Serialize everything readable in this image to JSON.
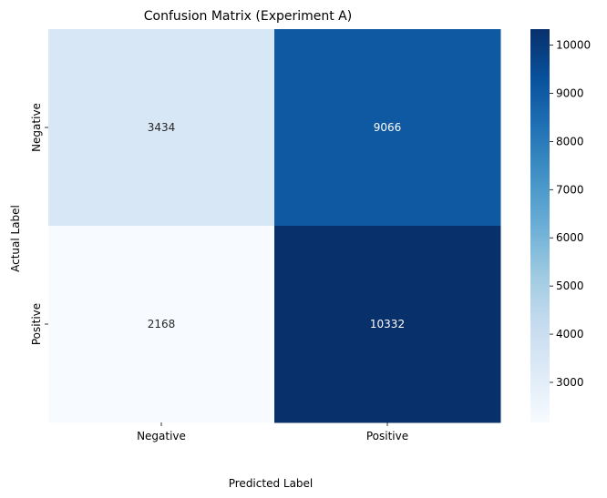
{
  "chart_data": {
    "type": "heatmap",
    "title": "Confusion Matrix (Experiment A)",
    "xlabel": "Predicted Label",
    "ylabel": "Actual Label",
    "x_categories": [
      "Negative",
      "Positive"
    ],
    "y_categories": [
      "Negative",
      "Positive"
    ],
    "values": [
      [
        3434,
        9066
      ],
      [
        2168,
        10332
      ]
    ],
    "colormap": "Blues",
    "colorbar": {
      "min": 2168,
      "max": 10332,
      "ticks": [
        3000,
        4000,
        5000,
        6000,
        7000,
        8000,
        9000,
        10000
      ]
    },
    "grid": false
  }
}
